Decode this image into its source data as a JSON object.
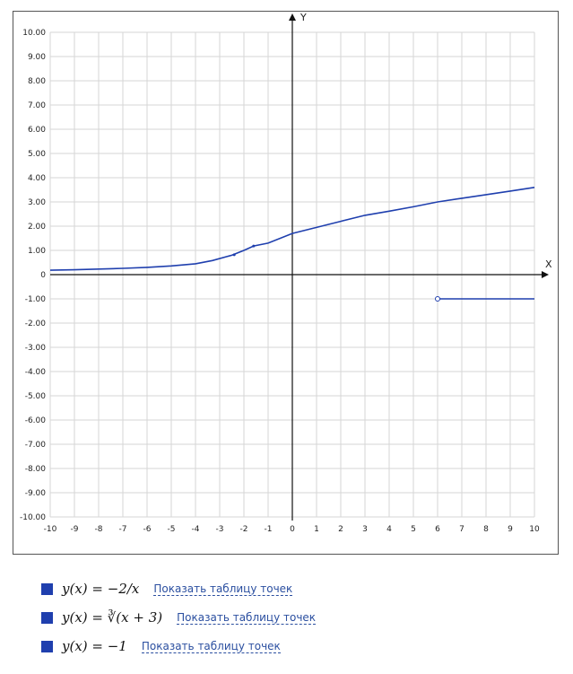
{
  "chart_data": {
    "type": "line",
    "xlabel": "X",
    "ylabel": "Y",
    "xlim": [
      -10,
      10
    ],
    "ylim": [
      -10,
      10
    ],
    "grid": true,
    "x_ticks": [
      "-10",
      "-9",
      "-8",
      "-7",
      "-6",
      "-5",
      "-4",
      "-3",
      "-2",
      "-1",
      "0",
      "1",
      "2",
      "3",
      "4",
      "5",
      "6",
      "7",
      "8",
      "9",
      "10"
    ],
    "y_ticks": [
      "10.00",
      "9.00",
      "8.00",
      "7.00",
      "6.00",
      "5.00",
      "4.00",
      "3.00",
      "2.00",
      "1.00",
      "0",
      "-1.00",
      "-2.00",
      "-3.00",
      "-4.00",
      "-5.00",
      "-6.00",
      "-7.00",
      "-8.00",
      "-9.00",
      "-10.00"
    ],
    "series": [
      {
        "name": "y(x) = -2/x",
        "color": "#1f3fae",
        "x": [],
        "y": []
      },
      {
        "name": "y(x) = cbrt(x+3)",
        "color": "#1f3fae",
        "x": [
          -10,
          -9,
          -8,
          -7,
          -6,
          -5,
          -4,
          -3.3,
          -2.5,
          -2,
          -1.6,
          -1,
          0,
          1,
          2,
          3,
          4,
          5,
          6,
          7,
          8,
          9,
          10
        ],
        "y": [
          0.18,
          0.2,
          0.23,
          0.26,
          0.3,
          0.36,
          0.45,
          0.58,
          0.8,
          1.0,
          1.18,
          1.3,
          1.7,
          1.95,
          2.2,
          2.45,
          2.62,
          2.8,
          3.0,
          3.15,
          3.3,
          3.45,
          3.6
        ]
      },
      {
        "name": "y(x) = -1",
        "color": "#1f3fae",
        "x": [
          6,
          10
        ],
        "y": [
          -1,
          -1
        ],
        "start_marker": "open-circle"
      }
    ]
  },
  "legend": [
    {
      "formula": "y(x) = −2/x",
      "link": "Показать таблицу точек"
    },
    {
      "formula": "y(x) = ∛(x + 3)",
      "link": "Показать таблицу точек"
    },
    {
      "formula": "y(x) = −1",
      "link": "Показать таблицу точек"
    }
  ]
}
